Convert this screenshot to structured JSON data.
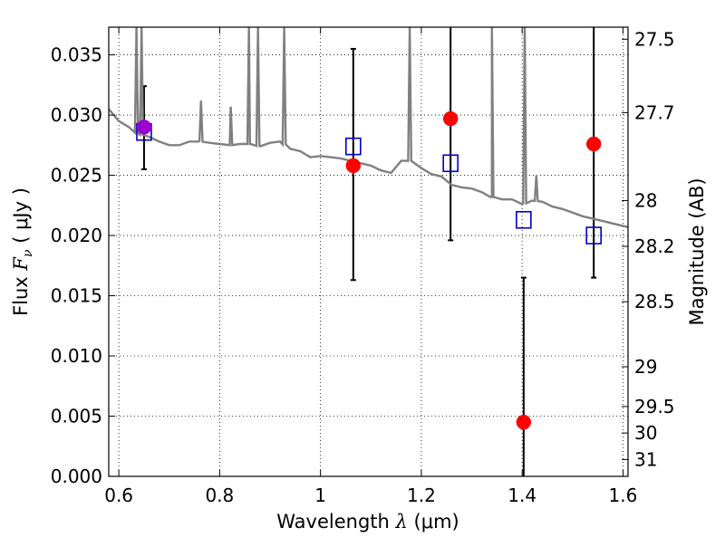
{
  "chart_data": {
    "type": "scatter",
    "xlabel_prefix": "Wavelength",
    "xlabel_symbol": "λ",
    "xlabel_unit": "(μm)",
    "ylabel_prefix": "Flux",
    "ylabel_symbol": "F",
    "ylabel_sub": "ν",
    "ylabel_unit": "( μJy )",
    "y2label": "Magnitude (AB)",
    "xlim": [
      0.58,
      1.61
    ],
    "ylim": [
      0.0,
      0.0373
    ],
    "x_ticks": [
      0.6,
      0.8,
      1.0,
      1.2,
      1.4,
      1.6
    ],
    "x_tick_labels": [
      "0.6",
      "0.8",
      "1",
      "1.2",
      "1.4",
      "1.6"
    ],
    "y_ticks": [
      0.0,
      0.005,
      0.01,
      0.015,
      0.02,
      0.025,
      0.03,
      0.035
    ],
    "y_tick_labels": [
      "0.000",
      "0.005",
      "0.010",
      "0.015",
      "0.020",
      "0.025",
      "0.030",
      "0.035"
    ],
    "y2_ticks": [
      {
        "label": "27.5",
        "flux": 0.0363
      },
      {
        "label": "27.7",
        "flux": 0.0302
      },
      {
        "label": "28",
        "flux": 0.0229
      },
      {
        "label": "28.2",
        "flux": 0.0191
      },
      {
        "label": "28.5",
        "flux": 0.0145
      },
      {
        "label": "29",
        "flux": 0.0091
      },
      {
        "label": "29.5",
        "flux": 0.0058
      },
      {
        "label": "30",
        "flux": 0.0036
      },
      {
        "label": "31",
        "flux": 0.0014
      }
    ],
    "grid": true,
    "series": [
      {
        "kind": "model_spectrum",
        "color": "#808080",
        "points": [
          [
            0.58,
            0.0305
          ],
          [
            0.6,
            0.0295
          ],
          [
            0.62,
            0.029
          ],
          [
            0.64,
            0.0284
          ],
          [
            0.66,
            0.0282
          ],
          [
            0.68,
            0.0278
          ],
          [
            0.7,
            0.0275
          ],
          [
            0.72,
            0.0275
          ],
          [
            0.74,
            0.0278
          ],
          [
            0.76,
            0.0278
          ],
          [
            0.78,
            0.0277
          ],
          [
            0.8,
            0.0276
          ],
          [
            0.82,
            0.0275
          ],
          [
            0.84,
            0.0276
          ],
          [
            0.86,
            0.0276
          ],
          [
            0.88,
            0.0274
          ],
          [
            0.9,
            0.0277
          ],
          [
            0.92,
            0.0278
          ],
          [
            0.94,
            0.0272
          ],
          [
            0.96,
            0.027
          ],
          [
            0.98,
            0.0265
          ],
          [
            1.0,
            0.0266
          ],
          [
            1.02,
            0.0265
          ],
          [
            1.04,
            0.0264
          ],
          [
            1.06,
            0.0262
          ],
          [
            1.08,
            0.026
          ],
          [
            1.1,
            0.0258
          ],
          [
            1.12,
            0.0254
          ],
          [
            1.14,
            0.0252
          ],
          [
            1.16,
            0.0262
          ],
          [
            1.18,
            0.0262
          ],
          [
            1.2,
            0.0256
          ],
          [
            1.22,
            0.0251
          ],
          [
            1.24,
            0.0249
          ],
          [
            1.26,
            0.0242
          ],
          [
            1.28,
            0.024
          ],
          [
            1.3,
            0.0239
          ],
          [
            1.32,
            0.0236
          ],
          [
            1.34,
            0.0232
          ],
          [
            1.36,
            0.023
          ],
          [
            1.38,
            0.023
          ],
          [
            1.4,
            0.0226
          ],
          [
            1.42,
            0.0229
          ],
          [
            1.44,
            0.0228
          ],
          [
            1.46,
            0.0224
          ],
          [
            1.48,
            0.0222
          ],
          [
            1.5,
            0.0219
          ],
          [
            1.52,
            0.0216
          ],
          [
            1.54,
            0.0214
          ],
          [
            1.56,
            0.0212
          ],
          [
            1.58,
            0.021
          ],
          [
            1.6,
            0.0208
          ],
          [
            1.61,
            0.0207
          ]
        ],
        "emission_lines": [
          [
            0.635,
            0.0373
          ],
          [
            0.645,
            0.0373
          ],
          [
            0.763,
            0.0312
          ],
          [
            0.822,
            0.0307
          ],
          [
            0.858,
            0.0373
          ],
          [
            0.876,
            0.0373
          ],
          [
            0.928,
            0.0373
          ],
          [
            1.177,
            0.0373
          ],
          [
            1.34,
            0.0373
          ],
          [
            1.405,
            0.0373
          ],
          [
            1.428,
            0.025
          ]
        ]
      },
      {
        "kind": "model_photometry",
        "marker": "open-square",
        "color": "#0000cc",
        "x": [
          0.65,
          1.065,
          1.258,
          1.403,
          1.542
        ],
        "y": [
          0.0286,
          0.0274,
          0.026,
          0.0213,
          0.02
        ]
      },
      {
        "kind": "observed_photometry",
        "marker": "filled-circle",
        "color": "#ff0000",
        "x": [
          0.65,
          1.065,
          1.258,
          1.403,
          1.542
        ],
        "y": [
          0.029,
          0.0258,
          0.0297,
          0.0045,
          0.0276
        ],
        "yerr_low": [
          0.0255,
          0.0163,
          0.0196,
          0.0,
          0.0165
        ],
        "yerr_high": [
          0.0324,
          0.0355,
          0.0373,
          0.0165,
          0.0373
        ],
        "point_colors": [
          "#9900cc",
          "#ff0000",
          "#ff0000",
          "#ff0000",
          "#ff0000"
        ]
      }
    ]
  }
}
